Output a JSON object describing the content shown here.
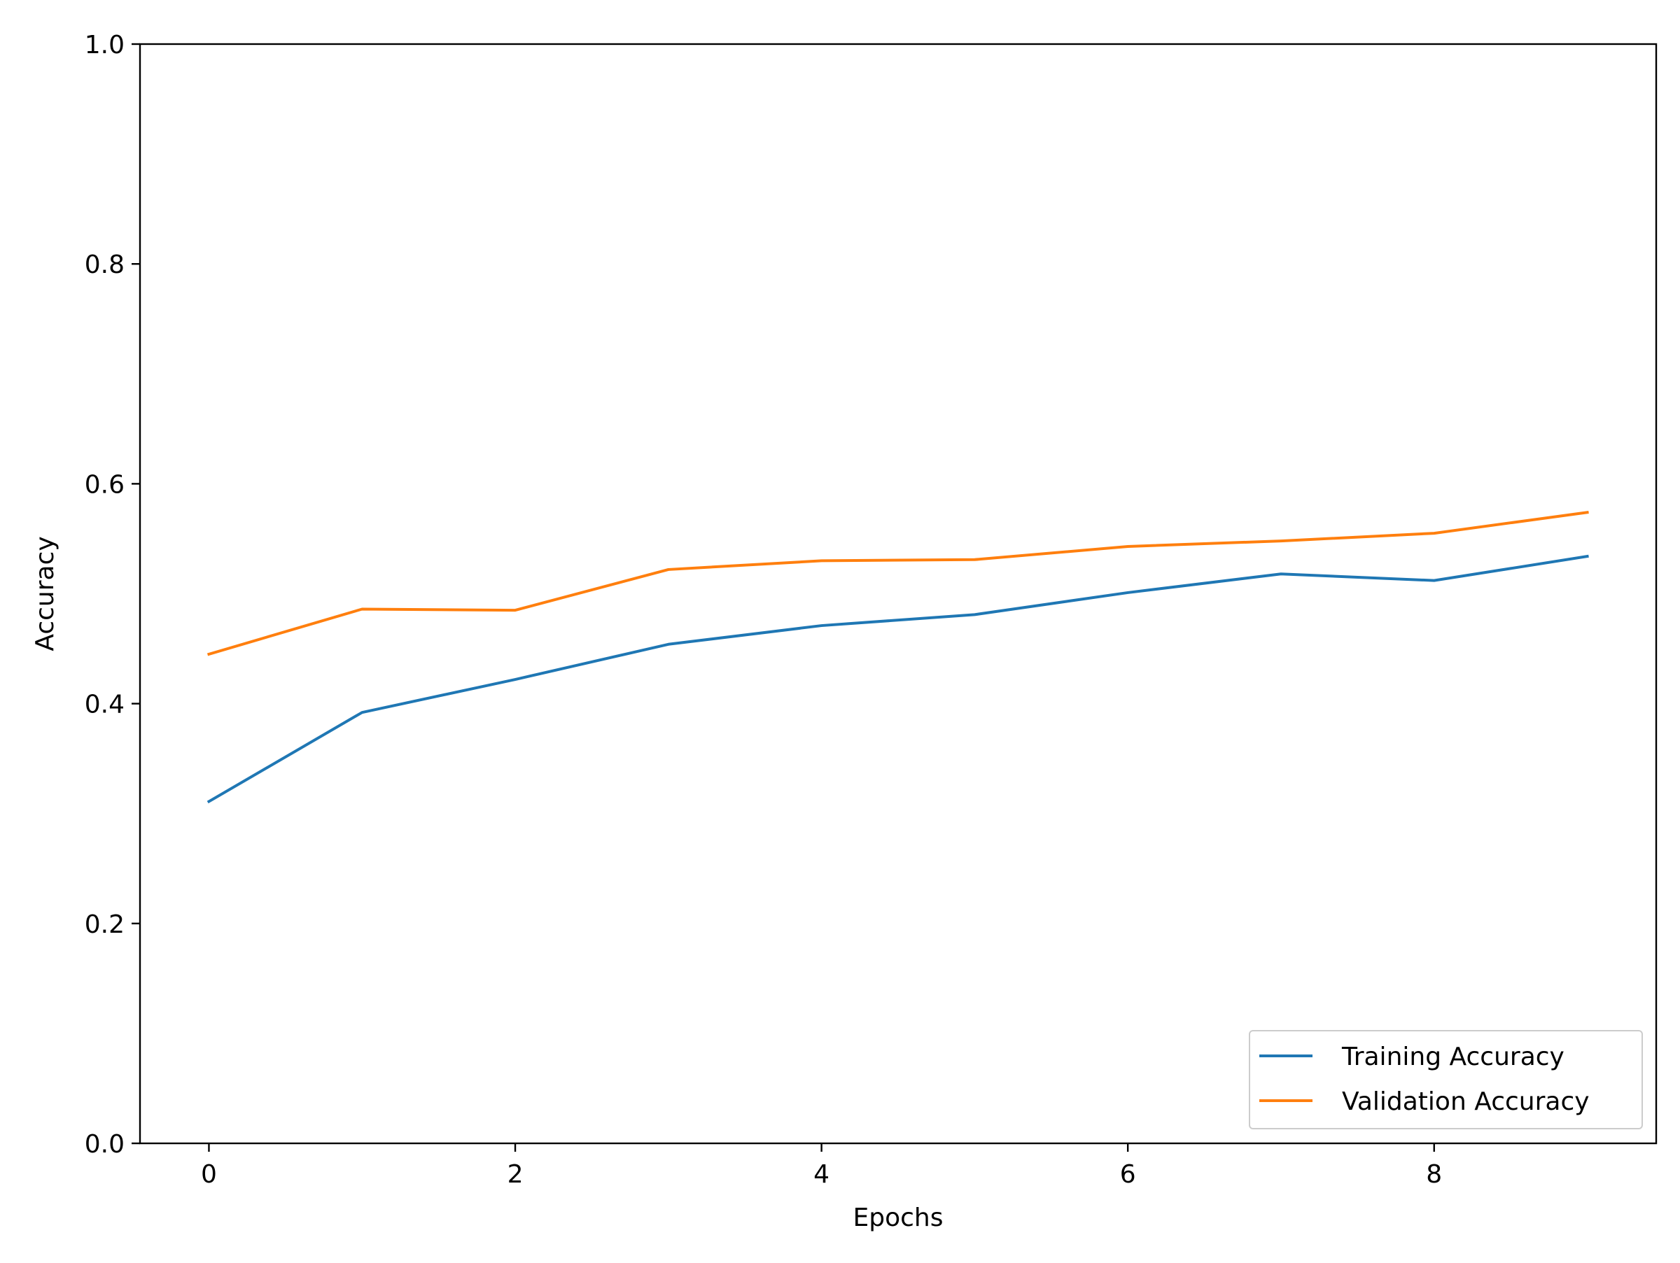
{
  "chart_data": {
    "type": "line",
    "title": "",
    "xlabel": "Epochs",
    "ylabel": "Accuracy",
    "xlim": [
      -0.45,
      9.45
    ],
    "ylim": [
      0.0,
      1.0
    ],
    "xticks": [
      0,
      2,
      4,
      6,
      8
    ],
    "yticks": [
      0.0,
      0.2,
      0.4,
      0.6,
      0.8,
      1.0
    ],
    "xtick_labels": [
      "0",
      "2",
      "4",
      "6",
      "8"
    ],
    "ytick_labels": [
      "0.0",
      "0.2",
      "0.4",
      "0.6",
      "0.8",
      "1.0"
    ],
    "grid": false,
    "legend_position": "lower right",
    "x": [
      0,
      1,
      2,
      3,
      4,
      5,
      6,
      7,
      8,
      9
    ],
    "series": [
      {
        "name": "Training Accuracy",
        "color": "#1f77b4",
        "values": [
          0.311,
          0.392,
          0.422,
          0.454,
          0.471,
          0.481,
          0.501,
          0.518,
          0.512,
          0.534
        ]
      },
      {
        "name": "Validation Accuracy",
        "color": "#ff7f0e",
        "values": [
          0.445,
          0.486,
          0.485,
          0.522,
          0.53,
          0.531,
          0.543,
          0.548,
          0.555,
          0.574
        ]
      }
    ]
  }
}
